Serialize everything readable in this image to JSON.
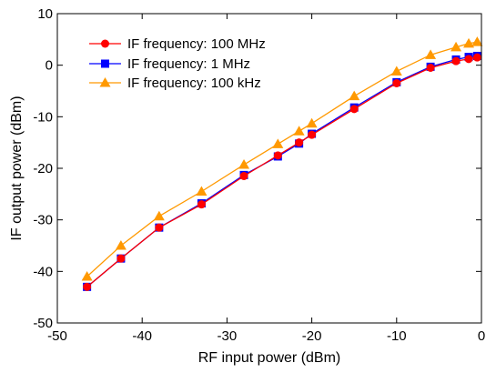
{
  "chart_data": {
    "type": "line",
    "xlabel": "RF input power (dBm)",
    "ylabel": "IF output power (dBm)",
    "xlim": [
      -50,
      0
    ],
    "ylim": [
      -50,
      10
    ],
    "xticks": [
      -50,
      -40,
      -30,
      -20,
      -10,
      0
    ],
    "yticks": [
      -50,
      -40,
      -30,
      -20,
      -10,
      0,
      10
    ],
    "grid": false,
    "legend_position": "top-left",
    "series": [
      {
        "name": "IF frequency: 100 MHz",
        "color": "#ff0000",
        "marker": "circle",
        "x": [
          -46.5,
          -42.5,
          -38,
          -33,
          -28,
          -24,
          -21.5,
          -20,
          -15,
          -10,
          -6,
          -3,
          -1.5,
          -0.5
        ],
        "y": [
          -43,
          -37.5,
          -31.5,
          -27,
          -21.5,
          -17.5,
          -15,
          -13.5,
          -8.5,
          -3.5,
          -0.5,
          0.8,
          1.2,
          1.5
        ]
      },
      {
        "name": "IF frequency: 1 MHz",
        "color": "#0000ff",
        "marker": "square",
        "x": [
          -46.5,
          -42.5,
          -38,
          -33,
          -28,
          -24,
          -21.5,
          -20,
          -15,
          -10,
          -6,
          -3,
          -1.5,
          -0.5
        ],
        "y": [
          -43,
          -37.5,
          -31.5,
          -26.8,
          -21.3,
          -17.7,
          -15.2,
          -13.3,
          -8.2,
          -3.3,
          -0.3,
          1.1,
          1.6,
          1.8
        ]
      },
      {
        "name": "IF frequency: 100 kHz",
        "color": "#ff9900",
        "marker": "triangle",
        "x": [
          -46.5,
          -42.5,
          -38,
          -33,
          -28,
          -24,
          -21.5,
          -20,
          -15,
          -10,
          -6,
          -3,
          -1.5,
          -0.5
        ],
        "y": [
          -41,
          -35,
          -29.3,
          -24.5,
          -19.3,
          -15.3,
          -12.8,
          -11.3,
          -6,
          -1.2,
          2,
          3.5,
          4.2,
          4.5
        ]
      }
    ]
  }
}
